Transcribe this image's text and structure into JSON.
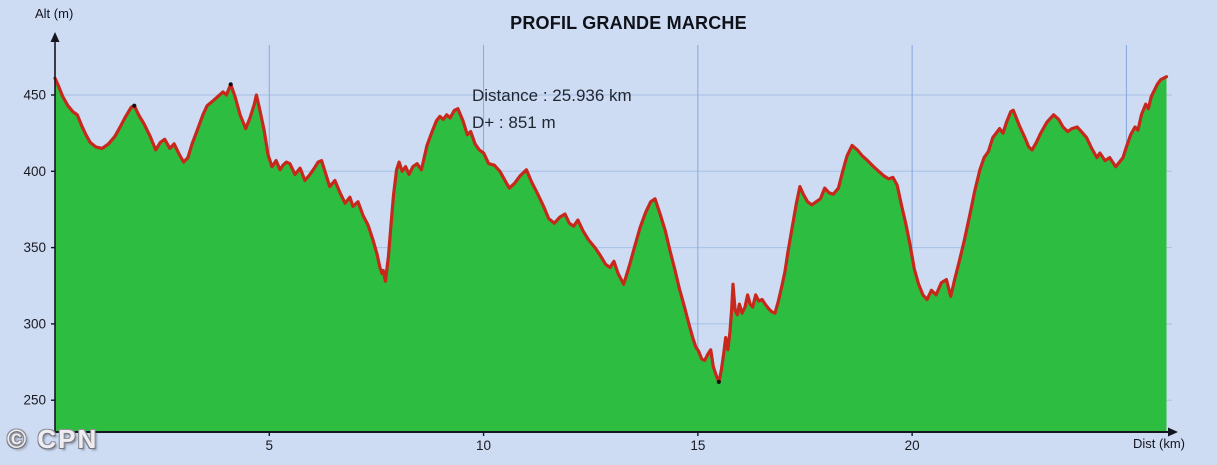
{
  "page": {
    "watermark": "© CPN"
  },
  "chart_data": {
    "type": "area",
    "title": "PROFIL GRANDE MARCHE",
    "annotations": {
      "distance": "Distance : 25.936 km",
      "d_plus": "D+ : 851 m"
    },
    "xlabel": "Dist (km)",
    "ylabel": "Alt (m)",
    "x_ticks": [
      5,
      10,
      15,
      20
    ],
    "x_gridlines": [
      5,
      10,
      15,
      20,
      25
    ],
    "y_ticks": [
      250,
      300,
      350,
      400,
      450
    ],
    "x_range_km": [
      0,
      25.936
    ],
    "y_axis_labeled_range_m": [
      250,
      450
    ],
    "distance_km": 25.936,
    "elevation_gain_m": 851,
    "start_alt_m": 461,
    "end_alt_m": 462,
    "min_alt_m": 261,
    "max_alt_m": 462,
    "grid": true,
    "legend_position": "none",
    "style": {
      "background": "#cddbf3",
      "area_fill": "#2dbe41",
      "line_color": "#c8281c",
      "grid_color_h": "#a6c1e6",
      "grid_color_v": "#87a9da",
      "axis_color": "#15151f",
      "tick_text_color": "#1a1a22",
      "title_color": "#0f1118",
      "annotation_color": "#202733",
      "marker_color": "#111111"
    },
    "point_markers": [
      [
        1.85,
        443
      ],
      [
        4.1,
        457
      ],
      [
        15.49,
        262
      ]
    ],
    "series": [
      {
        "name": "altitude_profile",
        "unit_x": "km",
        "unit_y": "m",
        "points": [
          [
            0,
            461
          ],
          [
            0.08,
            456
          ],
          [
            0.18,
            449
          ],
          [
            0.3,
            443
          ],
          [
            0.42,
            439
          ],
          [
            0.52,
            437
          ],
          [
            0.62,
            430
          ],
          [
            0.72,
            424
          ],
          [
            0.82,
            419
          ],
          [
            0.95,
            416
          ],
          [
            1.1,
            415
          ],
          [
            1.25,
            418
          ],
          [
            1.4,
            423
          ],
          [
            1.52,
            429
          ],
          [
            1.65,
            436
          ],
          [
            1.78,
            442
          ],
          [
            1.85,
            443
          ],
          [
            1.95,
            437
          ],
          [
            2.08,
            431
          ],
          [
            2.22,
            423
          ],
          [
            2.35,
            414
          ],
          [
            2.46,
            419
          ],
          [
            2.56,
            421
          ],
          [
            2.68,
            415
          ],
          [
            2.78,
            418
          ],
          [
            2.9,
            411
          ],
          [
            3,
            406
          ],
          [
            3.1,
            409
          ],
          [
            3.2,
            418
          ],
          [
            3.32,
            427
          ],
          [
            3.45,
            437
          ],
          [
            3.55,
            443
          ],
          [
            3.68,
            446
          ],
          [
            3.8,
            449
          ],
          [
            3.92,
            452
          ],
          [
            4,
            450
          ],
          [
            4.1,
            457
          ],
          [
            4.2,
            449
          ],
          [
            4.32,
            437
          ],
          [
            4.45,
            428
          ],
          [
            4.55,
            435
          ],
          [
            4.65,
            444
          ],
          [
            4.7,
            450
          ],
          [
            4.78,
            440
          ],
          [
            4.88,
            427
          ],
          [
            4.97,
            411
          ],
          [
            5.06,
            403
          ],
          [
            5.16,
            407
          ],
          [
            5.25,
            401
          ],
          [
            5.32,
            404
          ],
          [
            5.4,
            406
          ],
          [
            5.48,
            405
          ],
          [
            5.6,
            398
          ],
          [
            5.72,
            402
          ],
          [
            5.83,
            394
          ],
          [
            5.95,
            398
          ],
          [
            6.05,
            402
          ],
          [
            6.14,
            406
          ],
          [
            6.22,
            407
          ],
          [
            6.32,
            398
          ],
          [
            6.41,
            390
          ],
          [
            6.53,
            394
          ],
          [
            6.65,
            386
          ],
          [
            6.77,
            379
          ],
          [
            6.88,
            383
          ],
          [
            6.95,
            377
          ],
          [
            7.07,
            380
          ],
          [
            7.19,
            371
          ],
          [
            7.3,
            365
          ],
          [
            7.42,
            355
          ],
          [
            7.51,
            346
          ],
          [
            7.58,
            337
          ],
          [
            7.63,
            333
          ],
          [
            7.66,
            335
          ],
          [
            7.71,
            328
          ],
          [
            7.78,
            344
          ],
          [
            7.84,
            365
          ],
          [
            7.9,
            385
          ],
          [
            7.97,
            401
          ],
          [
            8.03,
            406
          ],
          [
            8.1,
            400
          ],
          [
            8.18,
            403
          ],
          [
            8.26,
            398
          ],
          [
            8.35,
            403
          ],
          [
            8.45,
            405
          ],
          [
            8.55,
            401
          ],
          [
            8.68,
            417
          ],
          [
            8.8,
            426
          ],
          [
            8.9,
            433
          ],
          [
            8.98,
            436
          ],
          [
            9.06,
            434
          ],
          [
            9.14,
            437
          ],
          [
            9.22,
            435
          ],
          [
            9.32,
            440
          ],
          [
            9.4,
            441
          ],
          [
            9.52,
            433
          ],
          [
            9.62,
            424
          ],
          [
            9.7,
            426
          ],
          [
            9.8,
            418
          ],
          [
            9.9,
            414
          ],
          [
            10,
            412
          ],
          [
            10.12,
            405
          ],
          [
            10.25,
            404
          ],
          [
            10.38,
            400
          ],
          [
            10.5,
            394
          ],
          [
            10.6,
            389
          ],
          [
            10.72,
            392
          ],
          [
            10.85,
            397
          ],
          [
            11,
            401
          ],
          [
            11.12,
            393
          ],
          [
            11.25,
            386
          ],
          [
            11.4,
            377
          ],
          [
            11.52,
            369
          ],
          [
            11.65,
            366
          ],
          [
            11.78,
            370
          ],
          [
            11.9,
            372
          ],
          [
            12,
            366
          ],
          [
            12.1,
            364
          ],
          [
            12.2,
            368
          ],
          [
            12.32,
            361
          ],
          [
            12.45,
            355
          ],
          [
            12.6,
            350
          ],
          [
            12.72,
            345
          ],
          [
            12.85,
            339
          ],
          [
            12.95,
            337
          ],
          [
            13.04,
            341
          ],
          [
            13.14,
            333
          ],
          [
            13.27,
            326
          ],
          [
            13.4,
            338
          ],
          [
            13.52,
            350
          ],
          [
            13.65,
            363
          ],
          [
            13.78,
            373
          ],
          [
            13.9,
            380
          ],
          [
            14,
            382
          ],
          [
            14.12,
            372
          ],
          [
            14.24,
            361
          ],
          [
            14.35,
            348
          ],
          [
            14.47,
            335
          ],
          [
            14.57,
            323
          ],
          [
            14.68,
            312
          ],
          [
            14.8,
            299
          ],
          [
            14.88,
            291
          ],
          [
            14.95,
            285
          ],
          [
            15.02,
            282
          ],
          [
            15.09,
            277
          ],
          [
            15.16,
            276
          ],
          [
            15.23,
            280
          ],
          [
            15.3,
            283
          ],
          [
            15.36,
            272
          ],
          [
            15.43,
            266
          ],
          [
            15.49,
            262
          ],
          [
            15.55,
            270
          ],
          [
            15.6,
            280
          ],
          [
            15.65,
            291
          ],
          [
            15.7,
            283
          ],
          [
            15.75,
            295
          ],
          [
            15.79,
            310
          ],
          [
            15.82,
            326
          ],
          [
            15.87,
            309
          ],
          [
            15.92,
            306
          ],
          [
            15.97,
            313
          ],
          [
            16.03,
            307
          ],
          [
            16.1,
            311
          ],
          [
            16.16,
            319
          ],
          [
            16.22,
            313
          ],
          [
            16.28,
            311
          ],
          [
            16.35,
            319
          ],
          [
            16.42,
            315
          ],
          [
            16.5,
            316
          ],
          [
            16.57,
            313
          ],
          [
            16.65,
            310
          ],
          [
            16.72,
            308
          ],
          [
            16.8,
            307
          ],
          [
            16.88,
            315
          ],
          [
            16.96,
            325
          ],
          [
            17.03,
            334
          ],
          [
            17.1,
            347
          ],
          [
            17.2,
            363
          ],
          [
            17.3,
            379
          ],
          [
            17.38,
            390
          ],
          [
            17.46,
            385
          ],
          [
            17.56,
            380
          ],
          [
            17.66,
            378
          ],
          [
            17.76,
            380
          ],
          [
            17.86,
            382
          ],
          [
            17.96,
            389
          ],
          [
            18.06,
            386
          ],
          [
            18.16,
            385
          ],
          [
            18.28,
            389
          ],
          [
            18.38,
            400
          ],
          [
            18.48,
            410
          ],
          [
            18.6,
            417
          ],
          [
            18.72,
            414
          ],
          [
            18.84,
            410
          ],
          [
            18.96,
            407
          ],
          [
            19.1,
            403
          ],
          [
            19.22,
            400
          ],
          [
            19.34,
            397
          ],
          [
            19.45,
            395
          ],
          [
            19.55,
            396
          ],
          [
            19.65,
            391
          ],
          [
            19.75,
            378
          ],
          [
            19.85,
            366
          ],
          [
            19.95,
            352
          ],
          [
            20.05,
            336
          ],
          [
            20.15,
            326
          ],
          [
            20.25,
            319
          ],
          [
            20.35,
            316
          ],
          [
            20.45,
            322
          ],
          [
            20.56,
            319
          ],
          [
            20.68,
            327
          ],
          [
            20.8,
            329
          ],
          [
            20.9,
            318
          ],
          [
            21,
            330
          ],
          [
            21.1,
            341
          ],
          [
            21.22,
            355
          ],
          [
            21.35,
            372
          ],
          [
            21.46,
            387
          ],
          [
            21.58,
            401
          ],
          [
            21.68,
            409
          ],
          [
            21.78,
            413
          ],
          [
            21.88,
            422
          ],
          [
            21.96,
            425
          ],
          [
            22.04,
            428
          ],
          [
            22.12,
            425
          ],
          [
            22.2,
            432
          ],
          [
            22.3,
            439
          ],
          [
            22.36,
            440
          ],
          [
            22.5,
            430
          ],
          [
            22.63,
            422
          ],
          [
            22.72,
            416
          ],
          [
            22.8,
            414
          ],
          [
            22.9,
            419
          ],
          [
            23,
            425
          ],
          [
            23.14,
            432
          ],
          [
            23.3,
            437
          ],
          [
            23.42,
            434
          ],
          [
            23.52,
            429
          ],
          [
            23.63,
            426
          ],
          [
            23.73,
            428
          ],
          [
            23.85,
            429
          ],
          [
            23.95,
            426
          ],
          [
            24.07,
            422
          ],
          [
            24.19,
            415
          ],
          [
            24.31,
            409
          ],
          [
            24.38,
            412
          ],
          [
            24.5,
            407
          ],
          [
            24.61,
            409
          ],
          [
            24.75,
            403
          ],
          [
            24.92,
            409
          ],
          [
            25,
            416
          ],
          [
            25.1,
            424
          ],
          [
            25.2,
            429
          ],
          [
            25.27,
            427
          ],
          [
            25.35,
            437
          ],
          [
            25.45,
            444
          ],
          [
            25.51,
            441
          ],
          [
            25.58,
            449
          ],
          [
            25.65,
            453
          ],
          [
            25.72,
            457
          ],
          [
            25.8,
            460
          ],
          [
            25.936,
            462
          ]
        ]
      }
    ]
  }
}
